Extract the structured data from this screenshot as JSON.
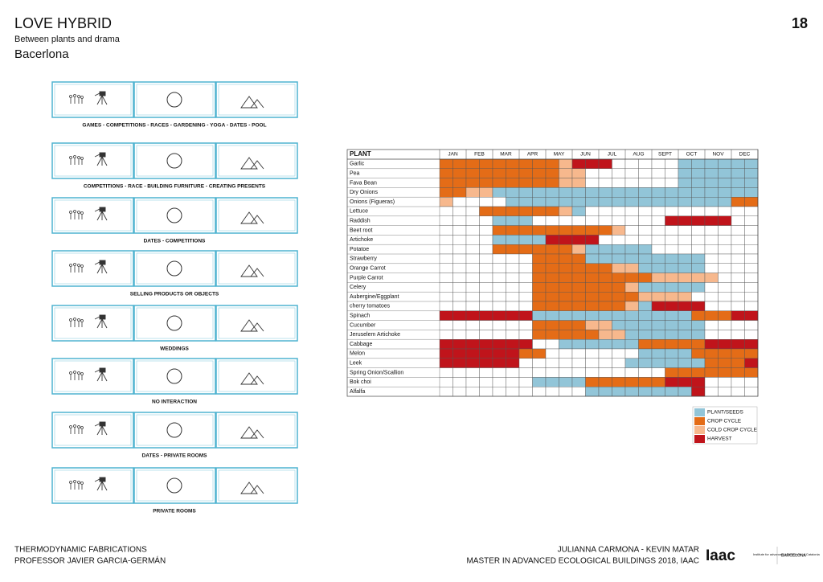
{
  "header": {
    "title": "LOVE HYBRID",
    "subtitle": "Between plants and drama",
    "location": "Bacerlona",
    "page": "18"
  },
  "activities": [
    {
      "caption": "GAMES - COMPETITIONS - RACES - GARDENING - YOGA - DATES - POOL"
    },
    {
      "caption": "COMPETITIONS - RACE - BUILDING FURNITURE - CREATING PRESENTS"
    },
    {
      "caption": "DATES - COMPETITIONS"
    },
    {
      "caption": "SELLING PRODUCTS OR OBJECTS"
    },
    {
      "caption": "WEDDINGS"
    },
    {
      "caption": "NO INTERACTION"
    },
    {
      "caption": "DATES - PRIVATE ROOMS"
    },
    {
      "caption": "PRIVATE ROOMS"
    }
  ],
  "calendar": {
    "header": "PLANT",
    "months": [
      "JAN",
      "FEB",
      "MAR",
      "APR",
      "MAY",
      "JUN",
      "JUL",
      "AUG",
      "SEPT",
      "OCT",
      "NOV",
      "DEC"
    ],
    "states": [
      {
        "label": "PLANT/SEEDS",
        "color": "#92c5d8"
      },
      {
        "label": "CROP CYCLE",
        "color": "#e46c17"
      },
      {
        "label": "COLD CROP CYCLE",
        "color": "#f7b88d"
      },
      {
        "label": "HARVEST",
        "color": "#c0141b"
      }
    ],
    "rows": [
      {
        "plant": "Garlic",
        "cells": [
          1,
          1,
          1,
          1,
          1,
          1,
          1,
          1,
          1,
          2,
          3,
          3,
          3,
          null,
          null,
          null,
          null,
          null,
          0,
          0,
          0,
          0,
          0,
          0
        ]
      },
      {
        "plant": "Pea",
        "cells": [
          1,
          1,
          1,
          1,
          1,
          1,
          1,
          1,
          1,
          2,
          2,
          null,
          null,
          null,
          null,
          null,
          null,
          null,
          0,
          0,
          0,
          0,
          0,
          0
        ]
      },
      {
        "plant": "Fava Bean",
        "cells": [
          1,
          1,
          1,
          1,
          1,
          1,
          1,
          1,
          1,
          2,
          2,
          null,
          null,
          null,
          null,
          null,
          null,
          null,
          0,
          0,
          0,
          0,
          0,
          0
        ]
      },
      {
        "plant": "Dry Onions",
        "cells": [
          1,
          1,
          2,
          2,
          0,
          0,
          0,
          0,
          0,
          0,
          0,
          0,
          0,
          0,
          0,
          0,
          0,
          0,
          0,
          0,
          0,
          0,
          0,
          0
        ]
      },
      {
        "plant": "Onions (Figueras)",
        "cells": [
          2,
          null,
          null,
          null,
          null,
          0,
          0,
          0,
          0,
          0,
          0,
          0,
          0,
          0,
          0,
          0,
          0,
          0,
          0,
          0,
          0,
          0,
          1,
          1
        ]
      },
      {
        "plant": "Lettuce",
        "cells": [
          null,
          null,
          null,
          1,
          1,
          1,
          1,
          1,
          1,
          2,
          0,
          null,
          null,
          null,
          null,
          null,
          null,
          null,
          null,
          null,
          null,
          null,
          null,
          null
        ]
      },
      {
        "plant": "Raddish",
        "cells": [
          null,
          null,
          null,
          null,
          0,
          0,
          0,
          null,
          null,
          null,
          null,
          null,
          null,
          null,
          null,
          null,
          null,
          3,
          3,
          3,
          3,
          3,
          null,
          null
        ]
      },
      {
        "plant": "Beet root",
        "cells": [
          null,
          null,
          null,
          null,
          1,
          1,
          1,
          1,
          1,
          1,
          1,
          1,
          1,
          2,
          null,
          null,
          null,
          null,
          null,
          null,
          null,
          null,
          null,
          null
        ]
      },
      {
        "plant": "Artichoke",
        "cells": [
          null,
          null,
          null,
          null,
          0,
          0,
          0,
          0,
          3,
          3,
          3,
          3,
          null,
          null,
          null,
          null,
          null,
          null,
          null,
          null,
          null,
          null,
          null,
          null
        ]
      },
      {
        "plant": "Potatoe",
        "cells": [
          null,
          null,
          null,
          null,
          1,
          1,
          1,
          1,
          1,
          1,
          2,
          0,
          0,
          0,
          0,
          0,
          null,
          null,
          null,
          null,
          null,
          null,
          null,
          null
        ]
      },
      {
        "plant": "Strawberry",
        "cells": [
          null,
          null,
          null,
          null,
          null,
          null,
          null,
          1,
          1,
          1,
          1,
          0,
          0,
          0,
          0,
          0,
          0,
          0,
          0,
          0,
          null,
          null,
          null,
          null
        ]
      },
      {
        "plant": "Orange Carrot",
        "cells": [
          null,
          null,
          null,
          null,
          null,
          null,
          null,
          1,
          1,
          1,
          1,
          1,
          1,
          2,
          2,
          0,
          0,
          0,
          0,
          0,
          null,
          null,
          null,
          null
        ]
      },
      {
        "plant": "Purple Carrot",
        "cells": [
          null,
          null,
          null,
          null,
          null,
          null,
          null,
          1,
          1,
          1,
          1,
          1,
          1,
          1,
          1,
          1,
          2,
          2,
          2,
          2,
          2,
          null,
          null,
          null
        ]
      },
      {
        "plant": "Celery",
        "cells": [
          null,
          null,
          null,
          null,
          null,
          null,
          null,
          1,
          1,
          1,
          1,
          1,
          1,
          1,
          2,
          0,
          0,
          0,
          0,
          0,
          null,
          null,
          null,
          null
        ]
      },
      {
        "plant": "Aubergine/Eggplant",
        "cells": [
          null,
          null,
          null,
          null,
          null,
          null,
          null,
          1,
          1,
          1,
          1,
          1,
          1,
          1,
          1,
          2,
          2,
          2,
          2,
          null,
          null,
          null,
          null,
          null
        ]
      },
      {
        "plant": "cherry tomatoes",
        "cells": [
          null,
          null,
          null,
          null,
          null,
          null,
          null,
          1,
          1,
          1,
          1,
          1,
          1,
          1,
          2,
          0,
          3,
          3,
          3,
          3,
          null,
          null,
          null,
          null
        ]
      },
      {
        "plant": "Spinach",
        "cells": [
          3,
          3,
          3,
          3,
          3,
          3,
          3,
          0,
          0,
          0,
          0,
          0,
          0,
          0,
          0,
          0,
          0,
          0,
          0,
          1,
          1,
          1,
          3,
          3
        ]
      },
      {
        "plant": "Cucumber",
        "cells": [
          null,
          null,
          null,
          null,
          null,
          null,
          null,
          1,
          1,
          1,
          1,
          2,
          2,
          0,
          0,
          0,
          0,
          0,
          0,
          0,
          null,
          null,
          null,
          null
        ]
      },
      {
        "plant": "Jeruselem Artichoke",
        "cells": [
          null,
          null,
          null,
          null,
          null,
          null,
          null,
          1,
          1,
          1,
          1,
          1,
          2,
          2,
          0,
          0,
          0,
          0,
          0,
          0,
          null,
          null,
          null,
          null
        ]
      },
      {
        "plant": "Cabbage",
        "cells": [
          3,
          3,
          3,
          3,
          3,
          3,
          3,
          null,
          null,
          0,
          0,
          0,
          0,
          0,
          0,
          1,
          1,
          1,
          1,
          1,
          3,
          3,
          3,
          3
        ]
      },
      {
        "plant": "Melon",
        "cells": [
          3,
          3,
          3,
          3,
          3,
          3,
          1,
          1,
          null,
          null,
          null,
          null,
          null,
          null,
          null,
          0,
          0,
          0,
          0,
          1,
          1,
          1,
          1,
          1
        ]
      },
      {
        "plant": "Leek",
        "cells": [
          3,
          3,
          3,
          3,
          3,
          3,
          null,
          null,
          null,
          null,
          null,
          null,
          null,
          null,
          0,
          0,
          0,
          0,
          0,
          0,
          1,
          1,
          1,
          3
        ]
      },
      {
        "plant": "Spring Onion/Scallion",
        "cells": [
          null,
          null,
          null,
          null,
          null,
          null,
          null,
          null,
          null,
          null,
          null,
          null,
          null,
          null,
          null,
          null,
          null,
          1,
          1,
          1,
          1,
          1,
          1,
          1
        ]
      },
      {
        "plant": "Bok choi",
        "cells": [
          null,
          null,
          null,
          null,
          null,
          null,
          null,
          0,
          0,
          0,
          0,
          1,
          1,
          1,
          1,
          1,
          1,
          3,
          3,
          3,
          null,
          null,
          null,
          null
        ]
      },
      {
        "plant": "Alfalfa",
        "cells": [
          null,
          null,
          null,
          null,
          null,
          null,
          null,
          null,
          null,
          null,
          null,
          0,
          0,
          0,
          0,
          0,
          0,
          0,
          0,
          3,
          null,
          null,
          null,
          null
        ]
      }
    ]
  },
  "footer": {
    "left": [
      "THERMODYNAMIC FABRICATIONS",
      "PROFESSOR JAVIER GARCIA-GERMÁN"
    ],
    "right": [
      "JULIANNA CARMONA - KEVIN MATAR",
      "MASTER IN ADVANCED ECOLOGICAL BUILDINGS 2018, IAAC"
    ],
    "logo": "Iaac",
    "logo_text": "Institute for advanced architecture of Catalonia",
    "logo_city": "BARCELONA"
  }
}
